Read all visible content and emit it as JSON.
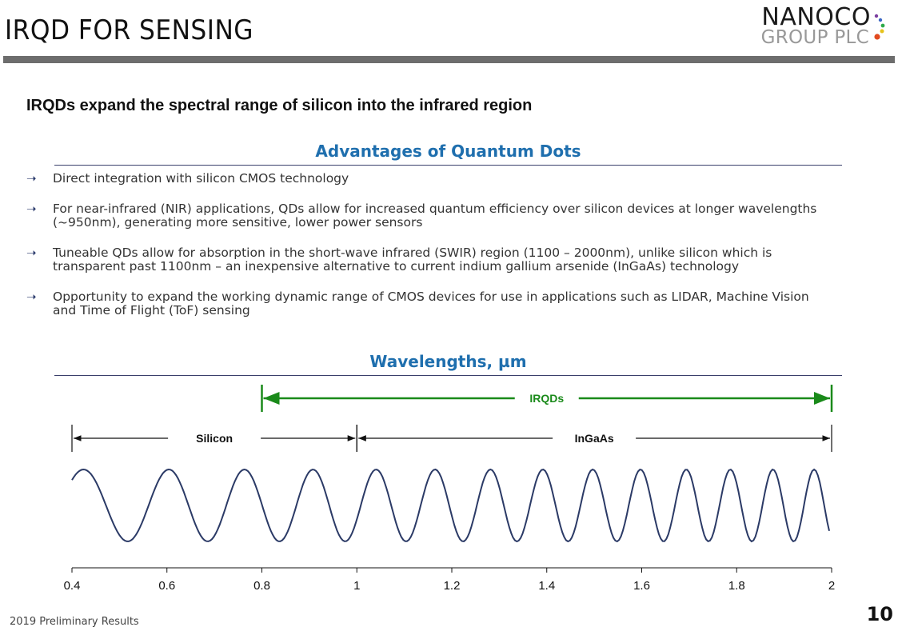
{
  "header": {
    "title": "IRQD FOR SENSING"
  },
  "logo": {
    "line1": "NANOCO",
    "line2": "GROUP PLC"
  },
  "headline": "IRQDs expand the spectral range of silicon into the infrared region",
  "advantages": {
    "heading": "Advantages of Quantum Dots",
    "items": [
      "Direct integration with silicon CMOS technology",
      "For near-infrared (NIR) applications, QDs allow for increased quantum efficiency over silicon devices at longer wavelengths (~950nm), generating more sensitive, lower power sensors",
      "Tuneable QDs allow for absorption in the short-wave infrared (SWIR) region (1100 – 2000nm), unlike silicon which is transparent past 1100nm – an inexpensive alternative to current indium gallium arsenide (InGaAs) technology",
      "Opportunity to expand the working dynamic range of CMOS devices for use in applications such as LIDAR, Machine Vision and Time of Flight (ToF) sensing"
    ]
  },
  "wavelengths": {
    "heading": "Wavelengths, µm",
    "ranges": [
      {
        "label": "IRQDs",
        "from": 0.8,
        "to": 2.0,
        "color": "#1a8a1a"
      },
      {
        "label": "Silicon",
        "from": 0.4,
        "to": 1.0,
        "color": "#111111"
      },
      {
        "label": "InGaAs",
        "from": 1.0,
        "to": 2.0,
        "color": "#111111"
      }
    ],
    "axis": {
      "min": 0.4,
      "max": 2.0,
      "ticks": [
        "0.4",
        "0.6",
        "0.8",
        "1",
        "1.2",
        "1.4",
        "1.6",
        "1.8",
        "2"
      ]
    },
    "wave_color": "#2b3a66"
  },
  "footer": {
    "text": "2019 Preliminary Results",
    "page": "10"
  }
}
